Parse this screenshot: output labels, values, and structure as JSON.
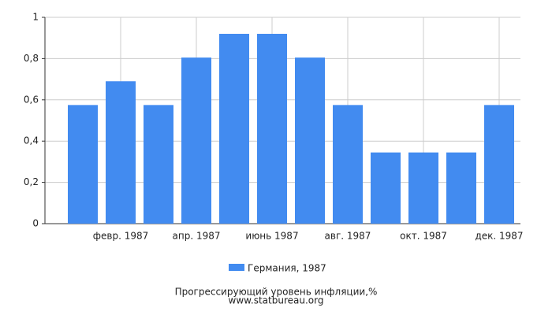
{
  "chart_data": {
    "type": "bar",
    "title": "Прогрессирующий уровень инфляции,%",
    "subtitle": "www.statbureau.org",
    "categories": [
      null,
      "февр. 1987",
      null,
      "апр. 1987",
      null,
      "июнь 1987",
      null,
      "авг. 1987",
      null,
      "окт. 1987",
      null,
      "дек. 1987"
    ],
    "series": [
      {
        "name": "Германия, 1987",
        "color": "#428bf0",
        "values": [
          0.575,
          0.69,
          0.575,
          0.805,
          0.92,
          0.92,
          0.805,
          0.575,
          0.345,
          0.345,
          0.345,
          0.575
        ]
      }
    ],
    "ylim": [
      0,
      1
    ],
    "yticks": [
      0,
      {
        "value": 0.2,
        "label": "0,2"
      },
      {
        "value": 0.4,
        "label": "0,4"
      },
      {
        "value": 0.6,
        "label": "0,6"
      },
      {
        "value": 0.8,
        "label": "0,8"
      },
      1
    ],
    "grid": true
  }
}
